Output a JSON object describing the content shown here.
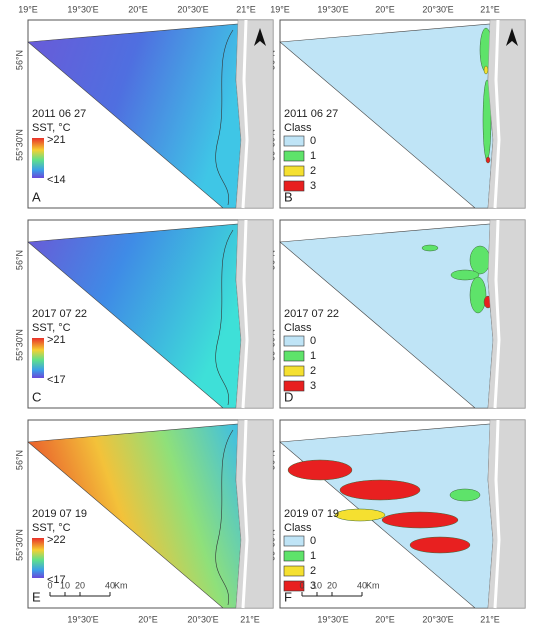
{
  "top_labels": [
    "19°E",
    "19°30'E",
    "20°E",
    "20°30'E",
    "21°E"
  ],
  "left_labels": [
    "56°N",
    "55°30'N"
  ],
  "bottom_labels": [
    "19°30'E",
    "20°E",
    "20°30'E",
    "21°E"
  ],
  "scale_bar": {
    "ticks": [
      "0",
      "10",
      "20",
      "40"
    ],
    "unit": "Km"
  },
  "panels": [
    {
      "letter": "A",
      "date": "2011 06 27",
      "legend": {
        "title": "SST, °C",
        "labels": [
          ">21",
          "<14"
        ]
      }
    },
    {
      "letter": "B",
      "date": "2011 06 27",
      "legend": {
        "title": "Class",
        "labels": [
          "0",
          "1",
          "2",
          "3"
        ]
      }
    },
    {
      "letter": "C",
      "date": "2017 07 22",
      "legend": {
        "title": "SST, °C",
        "labels": [
          ">21",
          "<17"
        ]
      }
    },
    {
      "letter": "D",
      "date": "2017 07 22",
      "legend": {
        "title": "Class",
        "labels": [
          "0",
          "1",
          "2",
          "3"
        ]
      }
    },
    {
      "letter": "E",
      "date": "2019 07 19",
      "legend": {
        "title": "SST, °C",
        "labels": [
          ">22",
          "<17"
        ]
      }
    },
    {
      "letter": "F",
      "date": "2019 07 19",
      "legend": {
        "title": "Class",
        "labels": [
          "0",
          "1",
          "2",
          "3"
        ]
      }
    }
  ]
}
